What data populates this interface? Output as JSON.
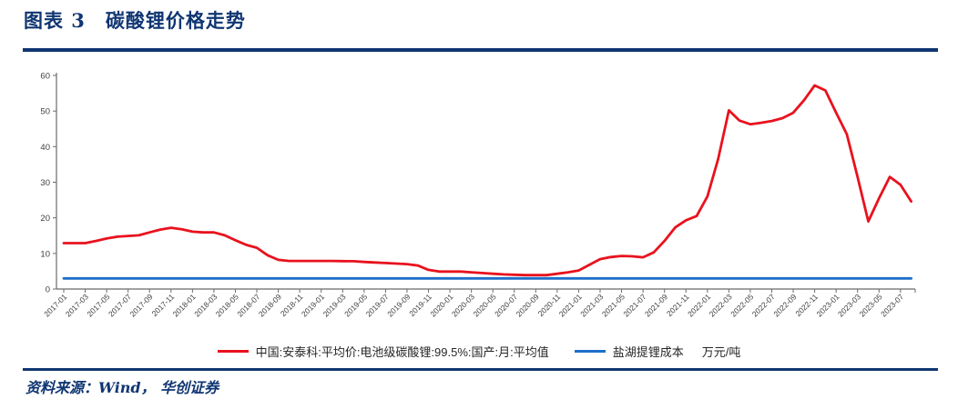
{
  "figure": {
    "title": "图表 3　碳酸锂价格走势",
    "source": "资料来源：Wind， 华创证券"
  },
  "colors": {
    "navy": "#103672",
    "red_line": "#e8121d",
    "blue_line": "#1e6ec8",
    "axis": "#6b6b6b",
    "tick_text": "#404040",
    "legend_text": "#262626"
  },
  "chart_data": {
    "type": "line",
    "title": "碳酸锂价格走势",
    "x_frequency": "monthly",
    "x_start": "2017-01",
    "x_end": "2023-08",
    "x_tick_labels": [
      "2017-01",
      "2017-03",
      "2017-05",
      "2017-07",
      "2017-09",
      "2017-11",
      "2018-01",
      "2018-03",
      "2018-05",
      "2018-07",
      "2018-09",
      "2018-11",
      "2019-01",
      "2019-03",
      "2019-05",
      "2019-07",
      "2019-09",
      "2019-11",
      "2020-01",
      "2020-03",
      "2020-05",
      "2020-07",
      "2020-09",
      "2020-11",
      "2021-01",
      "2021-03",
      "2021-05",
      "2021-07",
      "2021-09",
      "2021-11",
      "2022-01",
      "2022-03",
      "2022-05",
      "2022-07",
      "2022-09",
      "2022-11",
      "2023-01",
      "2023-03",
      "2023-05",
      "2023-07"
    ],
    "ylim": [
      0,
      60
    ],
    "yticks": [
      0,
      10,
      20,
      30,
      40,
      50,
      60
    ],
    "grid": false,
    "legend_position": "bottom",
    "unit_label": "万元/吨",
    "series": [
      {
        "name": "中国:安泰科:平均价:电池级碳酸锂:99.5%:国产:月:平均值",
        "color": "#e8121d",
        "values": [
          12.9,
          12.9,
          12.9,
          13.5,
          14.2,
          14.7,
          14.9,
          15.1,
          15.9,
          16.7,
          17.2,
          16.8,
          16.1,
          15.9,
          15.9,
          15.1,
          13.7,
          12.4,
          11.6,
          9.5,
          8.2,
          7.9,
          7.9,
          7.9,
          7.9,
          7.9,
          7.85,
          7.8,
          7.6,
          7.45,
          7.3,
          7.15,
          7.0,
          6.6,
          5.4,
          4.9,
          4.9,
          4.9,
          4.7,
          4.5,
          4.3,
          4.1,
          4.0,
          3.9,
          3.9,
          3.9,
          4.3,
          4.7,
          5.2,
          6.8,
          8.4,
          9.0,
          9.3,
          9.2,
          8.9,
          10.3,
          13.5,
          17.3,
          19.3,
          20.5,
          26.0,
          36.5,
          50.2,
          47.3,
          46.3,
          46.7,
          47.2,
          48.0,
          49.5,
          53.0,
          57.2,
          55.8,
          49.5,
          43.5,
          31.5,
          19.0,
          25.5,
          31.5,
          29.3,
          24.6
        ]
      },
      {
        "name": "盐湖提锂成本",
        "color": "#1e6ec8",
        "constant_value": 3
      }
    ]
  }
}
